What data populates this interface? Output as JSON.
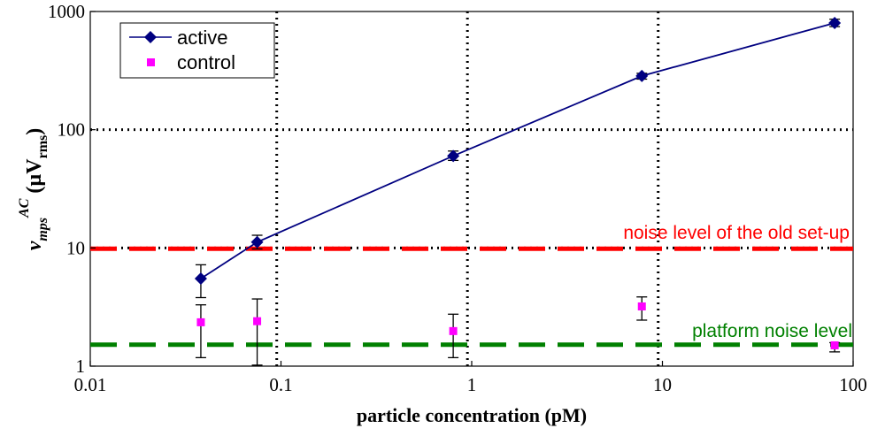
{
  "chart_data": {
    "type": "line",
    "xscale": "log",
    "yscale": "log",
    "xlim": [
      0.01,
      100
    ],
    "ylim": [
      1,
      1000
    ],
    "xlabel": "particle concentration (pM)",
    "ylabel": {
      "main": "v",
      "sub": "mps",
      "sup": "AC",
      "unit_open": " (",
      "unit_mu": "µ",
      "unit_v": "V",
      "unit_sub": "rms",
      "unit_close": ")"
    },
    "x_ticks": [
      {
        "value": 0.01,
        "label": "0.01"
      },
      {
        "value": 0.1,
        "label": "0.1"
      },
      {
        "value": 1,
        "label": "1"
      },
      {
        "value": 10,
        "label": "10"
      },
      {
        "value": 100,
        "label": "100"
      }
    ],
    "y_ticks": [
      {
        "value": 1,
        "label": "1"
      },
      {
        "value": 10,
        "label": "10"
      },
      {
        "value": 100,
        "label": "100"
      },
      {
        "value": 1000,
        "label": "1000"
      }
    ],
    "series": [
      {
        "name": "active",
        "color": "#000080",
        "marker": "diamond",
        "connected": true,
        "points": [
          {
            "x": 0.038,
            "y": 5.5,
            "ylo": 3.8,
            "yhi": 7.2
          },
          {
            "x": 0.075,
            "y": 11.2,
            "ylo": 9.8,
            "yhi": 12.8
          },
          {
            "x": 0.8,
            "y": 60,
            "ylo": 55,
            "yhi": 66
          },
          {
            "x": 7.8,
            "y": 285,
            "ylo": 268,
            "yhi": 300
          },
          {
            "x": 80,
            "y": 800,
            "ylo": 745,
            "yhi": 860
          }
        ]
      },
      {
        "name": "control",
        "color": "#ff00ff",
        "marker": "square",
        "connected": false,
        "points": [
          {
            "x": 0.038,
            "y": 2.35,
            "ylo": 1.18,
            "yhi": 3.3
          },
          {
            "x": 0.075,
            "y": 2.4,
            "ylo": 1.02,
            "yhi": 3.7
          },
          {
            "x": 0.8,
            "y": 1.98,
            "ylo": 1.18,
            "yhi": 2.75
          },
          {
            "x": 7.8,
            "y": 3.2,
            "ylo": 2.45,
            "yhi": 3.85
          },
          {
            "x": 80,
            "y": 1.5,
            "ylo": 1.32,
            "yhi": 1.58
          }
        ]
      }
    ],
    "reference_lines": [
      {
        "label": "noise level of the old set-up",
        "y": 9.85,
        "color": "#ff0000"
      },
      {
        "label": "platform noise level",
        "y": 1.52,
        "color": "#008000"
      }
    ],
    "highlight_lines": {
      "vertical_x": [
        0.095,
        0.95,
        9.5
      ],
      "horizontal_y": [
        10,
        100
      ]
    },
    "legend_position": "top-left"
  }
}
